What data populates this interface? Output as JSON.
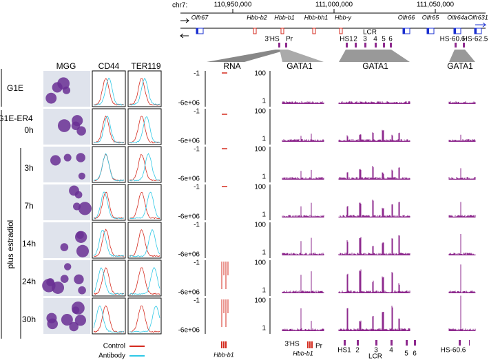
{
  "browser": {
    "chromosome": "chr7:",
    "coordinates": [
      "110,950,000",
      "111,000,000",
      "111,050,000"
    ],
    "genes": [
      "Olfr67",
      "Hbb-b2",
      "Hbb-b1",
      "Hbb-bh1",
      "Hbb-y",
      "Olfr66",
      "Olfr65",
      "Olfr64a",
      "Olfr631"
    ],
    "hbb_elements": [
      "3'HS",
      "Pr"
    ],
    "lcr": "LCR",
    "lcr_elements": [
      "HS1",
      "2",
      "3",
      "4",
      "5",
      "6"
    ],
    "distal_elements": [
      "HS-60.6",
      "HS-62.5"
    ]
  },
  "columns": {
    "mgg": "MGG",
    "cd44": "CD44",
    "ter119": "TER119",
    "rna": "RNA",
    "gata1": [
      "GATA1",
      "GATA1",
      "GATA1"
    ]
  },
  "cell_lines": [
    "G1E",
    "G1E-ER4"
  ],
  "treatment": "plus estradiol",
  "times": [
    "0h",
    "3h",
    "7h",
    "14h",
    "24h",
    "30h"
  ],
  "axes": {
    "rna": [
      "-1",
      "-6e+06"
    ],
    "gata1": [
      "100",
      "1"
    ]
  },
  "legend": [
    "Control",
    "Antibody"
  ],
  "bottom": {
    "rna_gene": "Hbb-b1",
    "hbb_elements": [
      "3'HS",
      "Hbb-b1",
      "Pr"
    ],
    "lcr_elements": [
      "HS1",
      "2",
      "3",
      "4",
      "5",
      "6"
    ],
    "lcr": "LCR",
    "distal": "HS-60.6"
  }
}
